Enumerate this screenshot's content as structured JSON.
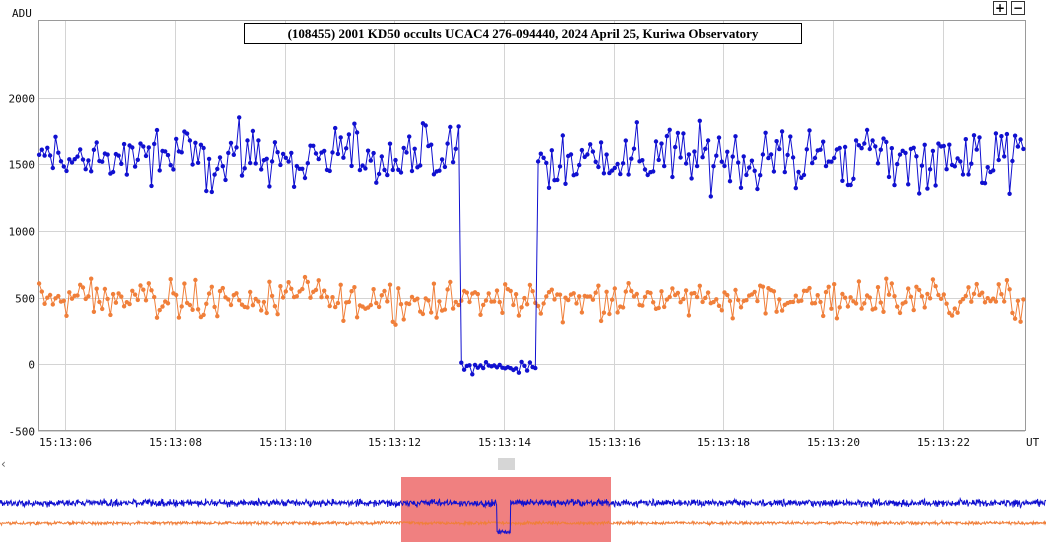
{
  "chart_data": {
    "type": "line",
    "title": "(108455) 2001 KD50 occults UCAC4 276-094440, 2024 April 25, Kuriwa Observatory",
    "ylabel": "ADU",
    "xlabel": "UT",
    "ylim": [
      -500,
      2000
    ],
    "yticks": [
      "2000",
      "1500",
      "1000",
      "500",
      "0",
      "-500"
    ],
    "xlim": [
      "15:13:05.5",
      "15:13:23.5"
    ],
    "xticks": [
      "15:13:06",
      "15:13:08",
      "15:13:10",
      "15:13:12",
      "15:13:14",
      "15:13:16",
      "15:13:18",
      "15:13:20",
      "15:13:22"
    ],
    "grid": true,
    "series": [
      {
        "color": "#1010d0",
        "baseline": 1550,
        "noise": 140,
        "drop_start": "15:13:13.2",
        "drop_end": "15:13:14.6",
        "drop_level": -20,
        "recovery_level": 1450
      },
      {
        "color": "#f07f3a",
        "baseline": 490,
        "noise": 85
      }
    ]
  },
  "overview": {
    "selection_color": "#f08080"
  },
  "zoom": {
    "in_label": "+",
    "out_label": "−"
  }
}
